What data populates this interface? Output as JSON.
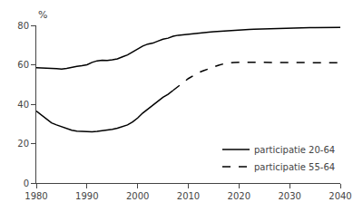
{
  "chart_data": {
    "type": "line",
    "ylabel": "%",
    "x": [
      1980,
      1981,
      1982,
      1983,
      1984,
      1985,
      1986,
      1987,
      1988,
      1989,
      1990,
      1991,
      1992,
      1993,
      1994,
      1995,
      1996,
      1997,
      1998,
      1999,
      2000,
      2001,
      2002,
      2003,
      2004,
      2005,
      2006,
      2007,
      2008,
      2009,
      2010,
      2011,
      2012,
      2013,
      2014,
      2015,
      2016,
      2017,
      2018,
      2019,
      2020,
      2021,
      2022,
      2023,
      2024,
      2025,
      2026,
      2027,
      2028,
      2029,
      2030,
      2031,
      2032,
      2033,
      2034,
      2035,
      2036,
      2037,
      2038,
      2039,
      2040
    ],
    "series": [
      {
        "name": "participatie 20-64",
        "color": "#000000",
        "line_style": "solid",
        "values": [
          58.5,
          58.5,
          58.3,
          58.2,
          58.0,
          57.8,
          58.2,
          58.8,
          59.2,
          59.5,
          60.0,
          61.2,
          62.0,
          62.3,
          62.2,
          62.5,
          63.0,
          64.0,
          65.0,
          66.5,
          68.0,
          69.5,
          70.5,
          71.0,
          72.0,
          73.0,
          73.5,
          74.5,
          75.0,
          75.2,
          75.5,
          75.8,
          76.0,
          76.2,
          76.5,
          76.8,
          77.0,
          77.2,
          77.4,
          77.6,
          77.7,
          77.8,
          77.9,
          78.0,
          78.1,
          78.2,
          78.3,
          78.4,
          78.5,
          78.5,
          78.6,
          78.6,
          78.7,
          78.7,
          78.8,
          78.8,
          78.8,
          78.9,
          78.9,
          79.0,
          79.0
        ]
      },
      {
        "color": "#000000",
        "line_style": "solid",
        "values": [
          36.5,
          34.5,
          32.5,
          30.5,
          29.5,
          28.5,
          27.5,
          26.8,
          26.3,
          26.2,
          26.0,
          26.0,
          26.2,
          26.5,
          26.8,
          27.2,
          27.8,
          28.5,
          29.5,
          31.0,
          33.0,
          35.5,
          37.5,
          39.5,
          41.5,
          43.5,
          45.0,
          47.0,
          null,
          null,
          null,
          null,
          null,
          null,
          null,
          null,
          null,
          null,
          null,
          null,
          null,
          null,
          null,
          null,
          null,
          null,
          null,
          null,
          null,
          null,
          null,
          null,
          null,
          null,
          null,
          null,
          null,
          null,
          null,
          null,
          null
        ]
      },
      {
        "name": "participatie 55-64",
        "color": "#000000",
        "line_style": "dashed",
        "values": [
          null,
          null,
          null,
          null,
          null,
          null,
          null,
          null,
          null,
          null,
          null,
          null,
          null,
          null,
          null,
          null,
          null,
          null,
          null,
          null,
          null,
          null,
          null,
          null,
          null,
          null,
          null,
          47.0,
          49.0,
          51.0,
          53.0,
          54.5,
          56.0,
          57.0,
          58.0,
          59.0,
          59.8,
          60.5,
          61.0,
          61.2,
          61.3,
          61.3,
          61.2,
          61.1,
          61.0,
          61.0,
          61.0,
          61.0,
          61.0,
          61.0,
          61.0,
          61.0,
          61.0,
          61.0,
          61.0,
          61.0,
          61.0,
          61.0,
          61.0,
          61.0,
          61.0
        ]
      }
    ],
    "xlim": [
      1980,
      2040
    ],
    "xticks": [
      1980,
      1990,
      2000,
      2010,
      2020,
      2030,
      2040
    ],
    "ylim": [
      0,
      80
    ],
    "yticks": [
      0,
      20,
      40,
      60,
      80
    ],
    "grid": false,
    "legend": "lower right"
  }
}
